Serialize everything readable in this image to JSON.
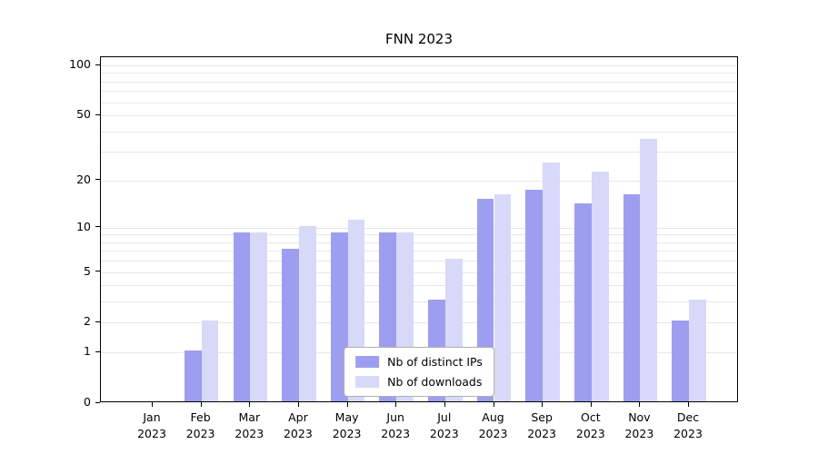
{
  "title": "FNN 2023",
  "chart_data": {
    "type": "bar",
    "title": "FNN 2023",
    "yscale": "log1p",
    "grid": true,
    "legend_position": "lower center",
    "categories": [
      "Jan 2023",
      "Feb 2023",
      "Mar 2023",
      "Apr 2023",
      "May 2023",
      "Jun 2023",
      "Jul 2023",
      "Aug 2023",
      "Sep 2023",
      "Oct 2023",
      "Nov 2023",
      "Dec 2023"
    ],
    "series": [
      {
        "name": "Nb of distinct IPs",
        "color": "#9e9ef0",
        "values": [
          0,
          1,
          9,
          7,
          9,
          9,
          3,
          15,
          17,
          14,
          16,
          2
        ]
      },
      {
        "name": "Nb of downloads",
        "color": "#d8d8f8",
        "values": [
          0,
          2,
          9,
          10,
          11,
          9,
          6,
          16,
          25,
          22,
          35,
          3
        ]
      }
    ],
    "yticks": [
      0,
      1,
      2,
      5,
      10,
      20,
      50,
      100
    ],
    "gridline_values": [
      1,
      2,
      3,
      4,
      5,
      6,
      7,
      8,
      9,
      10,
      20,
      30,
      40,
      50,
      60,
      70,
      80,
      90,
      100
    ],
    "ylim": [
      0,
      103
    ]
  }
}
